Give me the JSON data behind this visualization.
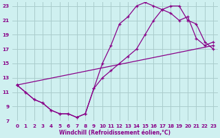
{
  "xlabel": "Windchill (Refroidissement éolien,°C)",
  "bg_color": "#cff0f0",
  "grid_color": "#aacccc",
  "line_color": "#880088",
  "xlim": [
    -0.5,
    23.5
  ],
  "ylim": [
    7,
    23.5
  ],
  "xticks": [
    0,
    1,
    2,
    3,
    4,
    5,
    6,
    7,
    8,
    9,
    10,
    11,
    12,
    13,
    14,
    15,
    16,
    17,
    18,
    19,
    20,
    21,
    22,
    23
  ],
  "yticks": [
    7,
    9,
    11,
    13,
    15,
    17,
    19,
    21,
    23
  ],
  "line1_x": [
    0,
    1,
    2,
    3,
    4,
    5,
    6,
    7,
    8,
    9,
    10,
    11,
    12,
    13,
    14,
    15,
    16,
    17,
    18,
    19,
    20,
    21,
    22,
    23
  ],
  "line1_y": [
    12,
    11,
    10,
    9.5,
    8.5,
    8,
    8,
    7.5,
    8,
    11.5,
    15,
    17.5,
    20.5,
    21.5,
    23,
    23.5,
    23,
    22.5,
    22,
    21,
    21.5,
    18.5,
    17.5,
    18
  ],
  "line2_x": [
    0,
    1,
    2,
    3,
    4,
    5,
    6,
    7,
    8,
    9,
    10,
    11,
    12,
    13,
    14,
    15,
    16,
    17,
    18,
    19,
    20,
    21,
    22,
    23
  ],
  "line2_y": [
    12,
    11,
    10,
    9.5,
    8.5,
    8,
    8,
    7.5,
    8,
    11.5,
    13,
    14,
    15,
    16,
    17,
    19,
    21,
    22.5,
    23,
    23,
    21,
    20.5,
    18,
    17
  ],
  "line3_x": [
    0,
    23
  ],
  "line3_y": [
    12,
    17.5
  ]
}
